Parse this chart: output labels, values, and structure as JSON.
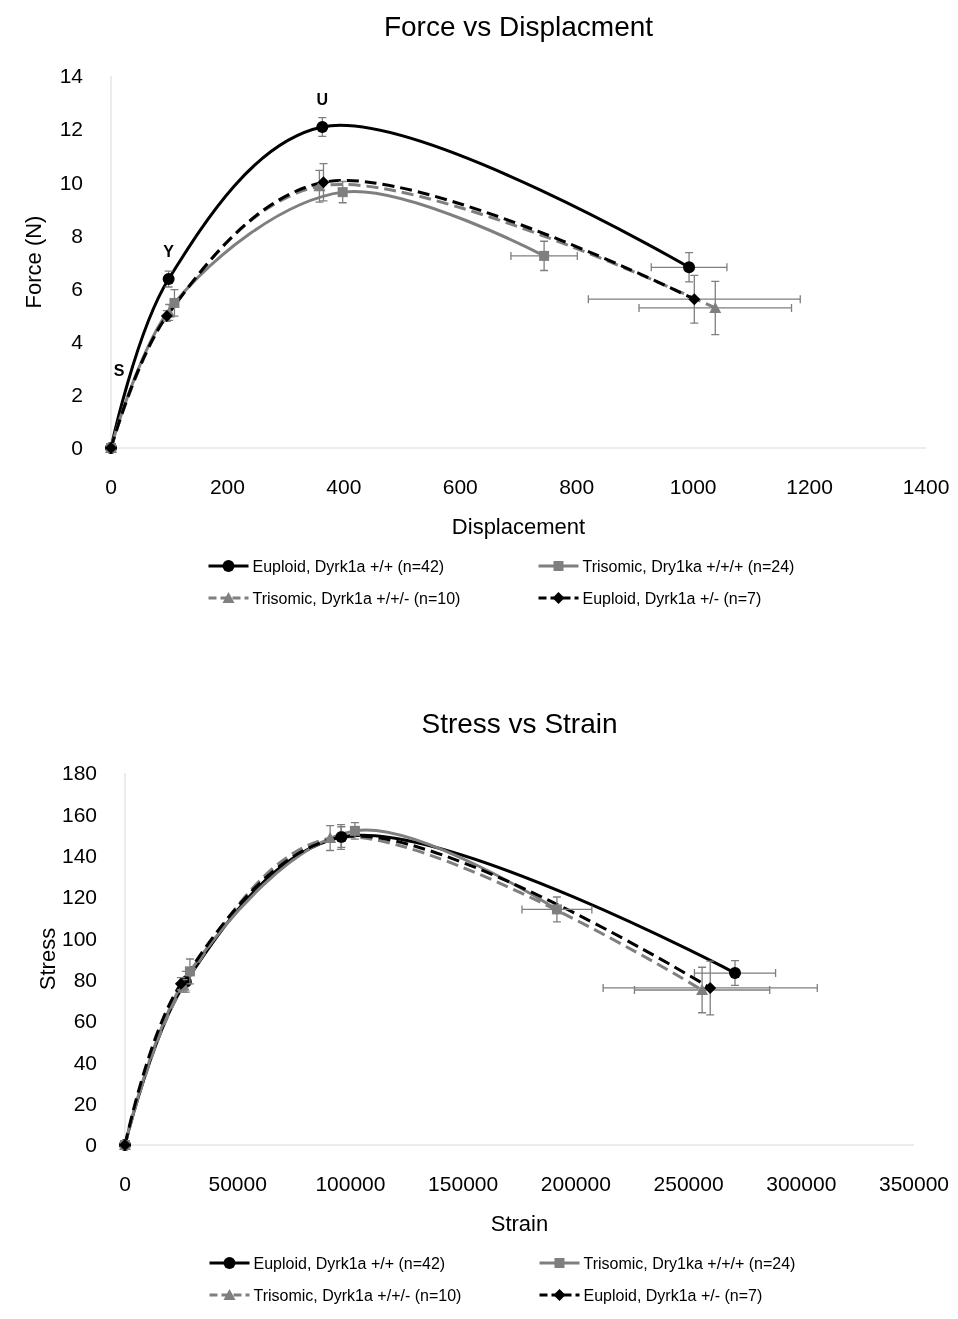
{
  "chart_data": [
    {
      "type": "line",
      "title": "Force vs Displacment",
      "xlabel": "Displacement",
      "ylabel": "Force (N)",
      "xlim": [
        0,
        1400
      ],
      "xticks": [
        0,
        200,
        400,
        600,
        800,
        1000,
        1200,
        1400
      ],
      "ylim": [
        0,
        14
      ],
      "yticks": [
        0,
        2,
        4,
        6,
        8,
        10,
        12,
        14
      ],
      "grid": false,
      "legend": "bottom",
      "annotations": [
        "S",
        {
          "text": "Y",
          "x": 99,
          "y": 6.36
        },
        {
          "text": "U",
          "x": 363,
          "y": 12.08
        }
      ],
      "series": [
        {
          "name": "Euploid, Dyrk1a +/+ (n=42)",
          "color": "#000000",
          "marker": "circle",
          "line_style": "solid",
          "x": [
            0,
            99,
            363,
            993
          ],
          "values": [
            0,
            6.36,
            12.08,
            6.8
          ],
          "errors": [
            null,
            0.3,
            0.35,
            0.55
          ],
          "xerrors": [
            null,
            null,
            null,
            65
          ]
        },
        {
          "name": "Trisomic, Dry1ka +/+/+ (n=24)",
          "color": "#7f7f7f",
          "marker": "square",
          "line_style": "solid",
          "x": [
            0,
            109,
            398,
            744
          ],
          "values": [
            0,
            5.46,
            9.63,
            7.23
          ],
          "errors": [
            null,
            0.5,
            0.4,
            0.55
          ],
          "xerrors": [
            null,
            null,
            null,
            57
          ]
        },
        {
          "name": "Trisomic, Dyrk1a +/+/- (n=10)",
          "color": "#7f7f7f",
          "marker": "triangle",
          "line_style": "dashed",
          "x": [
            0,
            100,
            358,
            1038
          ],
          "values": [
            0,
            5.1,
            9.85,
            5.27
          ],
          "errors": [
            null,
            0.3,
            0.6,
            1.0
          ],
          "xerrors": [
            null,
            null,
            null,
            131
          ]
        },
        {
          "name": "Euploid, Dyrk1a +/- (n=7)",
          "color": "#000000",
          "marker": "diamond",
          "line_style": "dashed",
          "x": [
            0,
            96,
            365,
            1002
          ],
          "values": [
            0,
            4.97,
            10.0,
            5.6
          ],
          "errors": [
            null,
            0.2,
            0.7,
            0.9
          ],
          "xerrors": [
            null,
            null,
            null,
            182
          ]
        }
      ]
    },
    {
      "type": "line",
      "title": "Stress vs Strain",
      "xlabel": "Strain",
      "ylabel": "Stress",
      "xlim": [
        0,
        350000
      ],
      "xticks": [
        0,
        50000,
        100000,
        150000,
        200000,
        250000,
        300000,
        350000
      ],
      "ylim": [
        0,
        180
      ],
      "yticks": [
        0,
        20,
        40,
        60,
        80,
        100,
        120,
        140,
        160,
        180
      ],
      "grid": false,
      "legend": "bottom",
      "series": [
        {
          "name": "Euploid, Dyrk1a +/+ (n=42)",
          "color": "#000000",
          "marker": "circle",
          "line_style": "solid",
          "x": [
            0,
            27000,
            96000,
            270600
          ],
          "values": [
            0,
            79,
            149,
            83.2
          ],
          "errors": [
            null,
            5,
            5,
            6
          ],
          "xerrors": [
            null,
            null,
            null,
            18000
          ]
        },
        {
          "name": "Trisomic, Dry1ka +/+/+ (n=24)",
          "color": "#7f7f7f",
          "marker": "square",
          "line_style": "solid",
          "x": [
            0,
            28800,
            102000,
            191600
          ],
          "values": [
            0,
            84,
            152,
            114
          ],
          "errors": [
            null,
            6,
            4,
            6
          ],
          "xerrors": [
            null,
            null,
            null,
            15500
          ]
        },
        {
          "name": "Trisomic, Dyrk1a +/+/- (n=10)",
          "color": "#7f7f7f",
          "marker": "triangle",
          "line_style": "dashed",
          "x": [
            0,
            26000,
            91000,
            256000
          ],
          "values": [
            0,
            77,
            148.5,
            75
          ],
          "errors": [
            null,
            3,
            6,
            11
          ],
          "xerrors": [
            null,
            null,
            null,
            30000
          ]
        },
        {
          "name": "Euploid, Dyrk1a +/- (n=7)",
          "color": "#000000",
          "marker": "diamond",
          "line_style": "dashed",
          "x": [
            0,
            24800,
            95800,
            259600
          ],
          "values": [
            0,
            78,
            149,
            76
          ],
          "errors": [
            null,
            3,
            6,
            13
          ],
          "xerrors": [
            null,
            null,
            null,
            47500
          ]
        }
      ]
    }
  ]
}
